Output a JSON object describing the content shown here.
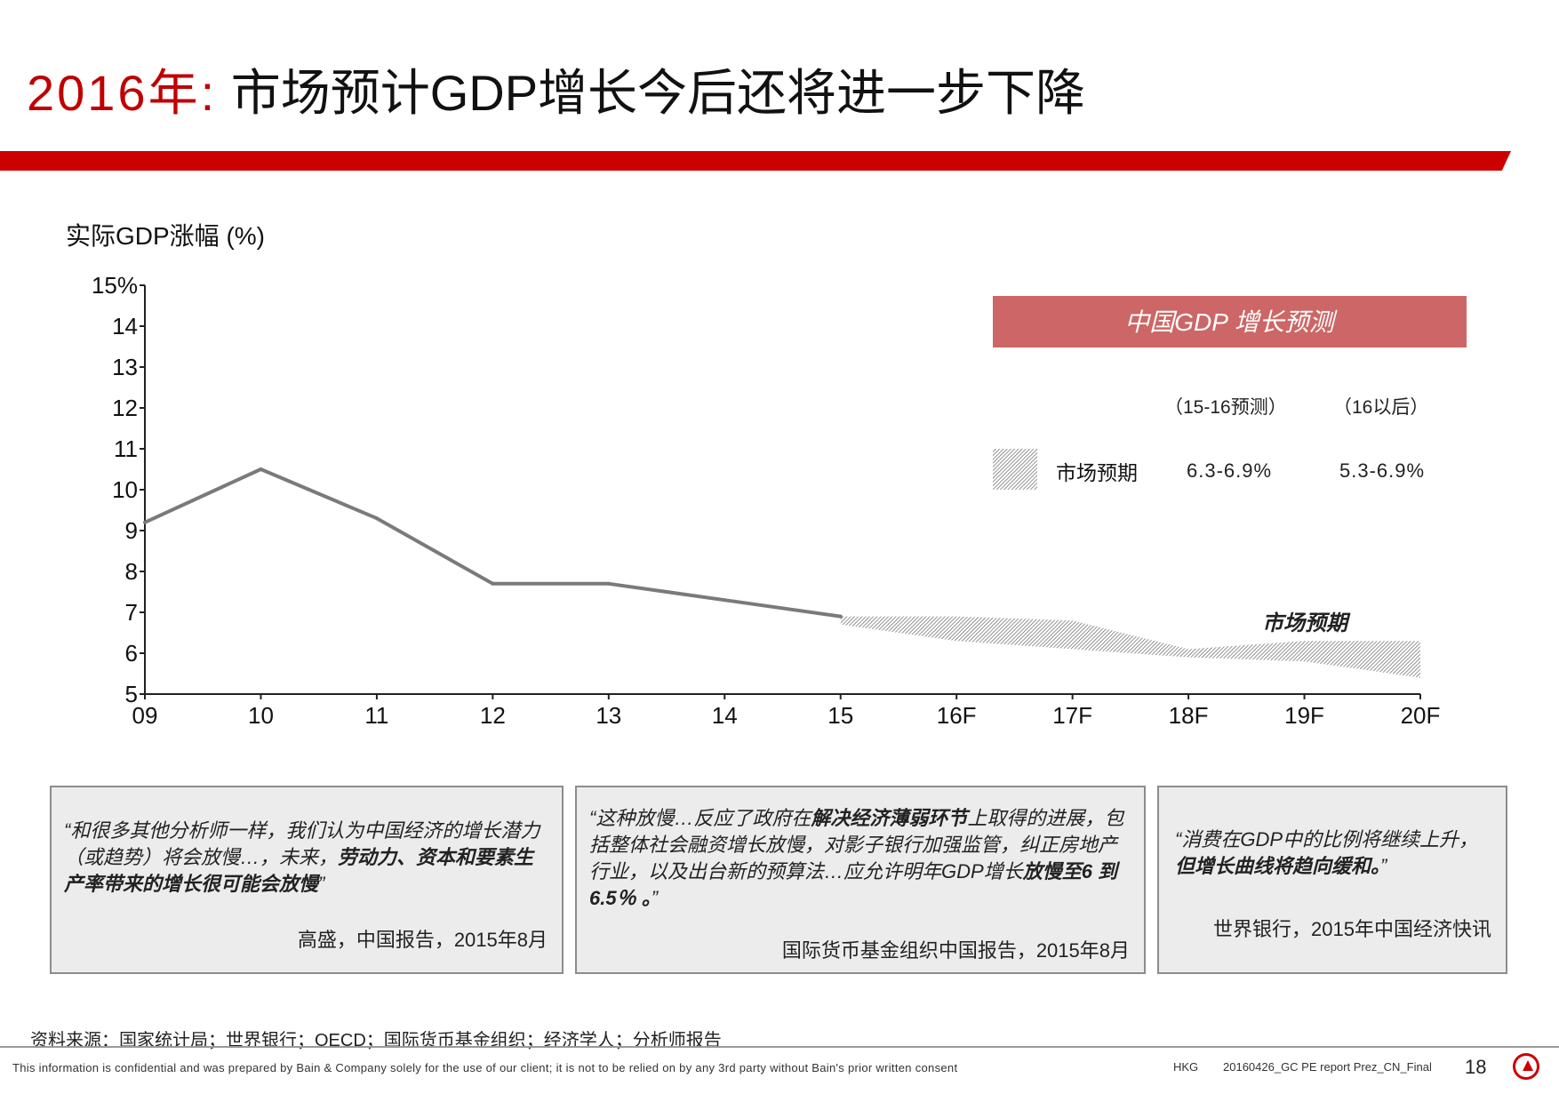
{
  "page": {
    "title_year": "2016年:",
    "title_text": " 市场预计GDP增长今后还将进一步下降"
  },
  "chart_data": {
    "type": "line",
    "title": "实际GDP涨幅 (%)",
    "ylabel": "实际GDP涨幅 (%)",
    "ylim": [
      5,
      15
    ],
    "y_ticks": [
      "5",
      "6",
      "7",
      "8",
      "9",
      "10",
      "11",
      "12",
      "13",
      "14",
      "15%"
    ],
    "categories": [
      "09",
      "10",
      "11",
      "12",
      "13",
      "14",
      "15",
      "16F",
      "17F",
      "18F",
      "19F",
      "20F"
    ],
    "series": [
      {
        "name": "实际GDP",
        "x": [
          "09",
          "10",
          "11",
          "12",
          "13",
          "14",
          "15"
        ],
        "values": [
          9.2,
          10.5,
          9.3,
          7.7,
          7.7,
          7.3,
          6.9
        ]
      },
      {
        "name": "市场预期",
        "kind": "band",
        "x": [
          "15",
          "16F",
          "17F",
          "18F",
          "19F",
          "20F"
        ],
        "low": [
          6.7,
          6.3,
          6.1,
          5.9,
          5.8,
          5.4
        ],
        "high": [
          6.9,
          6.9,
          6.8,
          6.1,
          6.3,
          6.3
        ]
      }
    ],
    "band_label": "市场预期",
    "legend": {
      "header": "中国GDP 增长预测",
      "col1": "（15-16预测）",
      "col2": "（16以后）",
      "row_label": "市场预期",
      "row_val1": "6.3-6.9%",
      "row_val2": "5.3-6.9%"
    }
  },
  "quotes": [
    {
      "pre": "“和很多其他分析师一样，我们认为中国经济的增长潜力（或趋势）将会放慢…，未来，",
      "bold": "劳动力、资本和要素生产率带来的增长很可能会放慢",
      "post": "”",
      "source": "高盛，中国报告，2015年8月"
    },
    {
      "pre": "“这种放慢…反应了政府在",
      "bold": "解决经济薄弱环节",
      "mid": "上取得的进展，包括整体社会融资增长放慢，对影子银行加强监管，纠正房地产行业，以及出台新的预算法…应允许明年GDP增长",
      "bold2": "放慢至6 到6.5％ 。",
      "post": "”",
      "source": "国际货币基金组织中国报告，2015年8月"
    },
    {
      "pre": "“消费在GDP中的比例将继续上升，",
      "bold": "但增长曲线将趋向缓和。",
      "post": "”",
      "source": "世界银行，2015年中国经济快讯"
    }
  ],
  "footer": {
    "sources": "资料来源：国家统计局；世界银行；OECD；国际货币基金组织；经济学人；分析师报告",
    "disclaimer": "This information is confidential and was prepared by Bain & Company solely for the use of our client; it is not to be relied on by any 3rd party without Bain's prior written consent",
    "region": "HKG",
    "file": "20160426_GC PE report Prez_CN_Final",
    "page_number": "18"
  },
  "colors": {
    "accent": "#cc0000",
    "line": "#7a7a7a",
    "legend_header": "#cd6666",
    "box_bg": "#ececec"
  }
}
